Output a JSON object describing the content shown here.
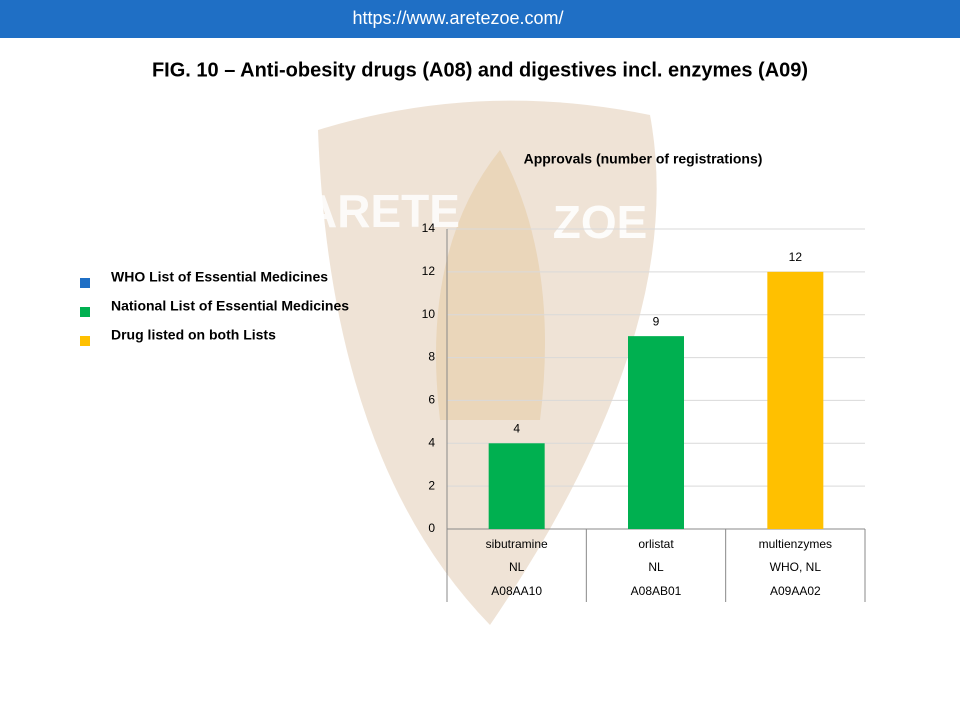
{
  "header": {
    "url": "https://www.aretezoe.com/"
  },
  "watermark": {
    "left": "ARETE",
    "right": "ZOE"
  },
  "chart_data": {
    "type": "bar",
    "figure_title": "FIG. 10 – Anti-obesity drugs (A08) and digestives incl. enzymes (A09)",
    "title": "Approvals (number of registrations)",
    "categories": [
      "sibutramine",
      "orlistat",
      "multienzymes"
    ],
    "category_rows": [
      [
        "NL",
        "NL",
        "WHO, NL"
      ],
      [
        "A08AA10",
        "A08AB01",
        "A09AA02"
      ]
    ],
    "values": [
      4,
      9,
      12
    ],
    "colors": [
      "#00b050",
      "#00b050",
      "#ffc000"
    ],
    "legend": [
      {
        "label": "WHO List of Essential Medicines",
        "color": "#1f6fc5"
      },
      {
        "label": "National List of Essential Medicines",
        "color": "#00b050"
      },
      {
        "label": "Drug listed on both Lists",
        "color": "#ffc000"
      }
    ],
    "ylim": [
      0,
      14
    ],
    "yticks": [
      0,
      2,
      4,
      6,
      8,
      10,
      12,
      14
    ],
    "grid": true
  }
}
